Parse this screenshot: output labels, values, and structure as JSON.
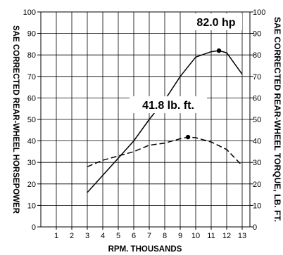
{
  "chart_data": {
    "type": "line",
    "title": "",
    "xlabel": "RPM. THOUSANDS",
    "ylabel_left": "SAE CORRECTED REAR-WHEEL HORSEPOWER",
    "ylabel_right": "SAE CORRECTED REAR-WHEEL TORQUE, LB. FT.",
    "xlim": [
      0,
      13.5
    ],
    "ylim": [
      0,
      100
    ],
    "x_ticks": [
      "1",
      "2",
      "3",
      "4",
      "5",
      "6",
      "7",
      "8",
      "9",
      "10",
      "11",
      "12",
      "13"
    ],
    "y_ticks": [
      "0",
      "10",
      "20",
      "30",
      "40",
      "50",
      "60",
      "70",
      "80",
      "90",
      "100"
    ],
    "grid": true,
    "series": [
      {
        "style": "solid",
        "x": [
          3,
          4,
          5,
          6,
          7,
          8,
          9,
          10,
          11,
          11.5,
          12,
          13
        ],
        "y": [
          16,
          24,
          32,
          40,
          50,
          59,
          70,
          79,
          81.5,
          82,
          81,
          71
        ]
      },
      {
        "style": "dashed",
        "x": [
          3,
          4,
          5,
          6,
          7,
          8,
          9,
          9.5,
          10,
          11,
          12,
          13
        ],
        "y": [
          28,
          31,
          33,
          35,
          38,
          39,
          41,
          41.8,
          41.5,
          39.5,
          36,
          28.5
        ]
      }
    ],
    "annotations": [
      {
        "text": "82.0 hp",
        "x": 11.5,
        "y": 82
      },
      {
        "text": "41.8 lb. ft.",
        "x": 9.5,
        "y": 41.8
      }
    ]
  }
}
